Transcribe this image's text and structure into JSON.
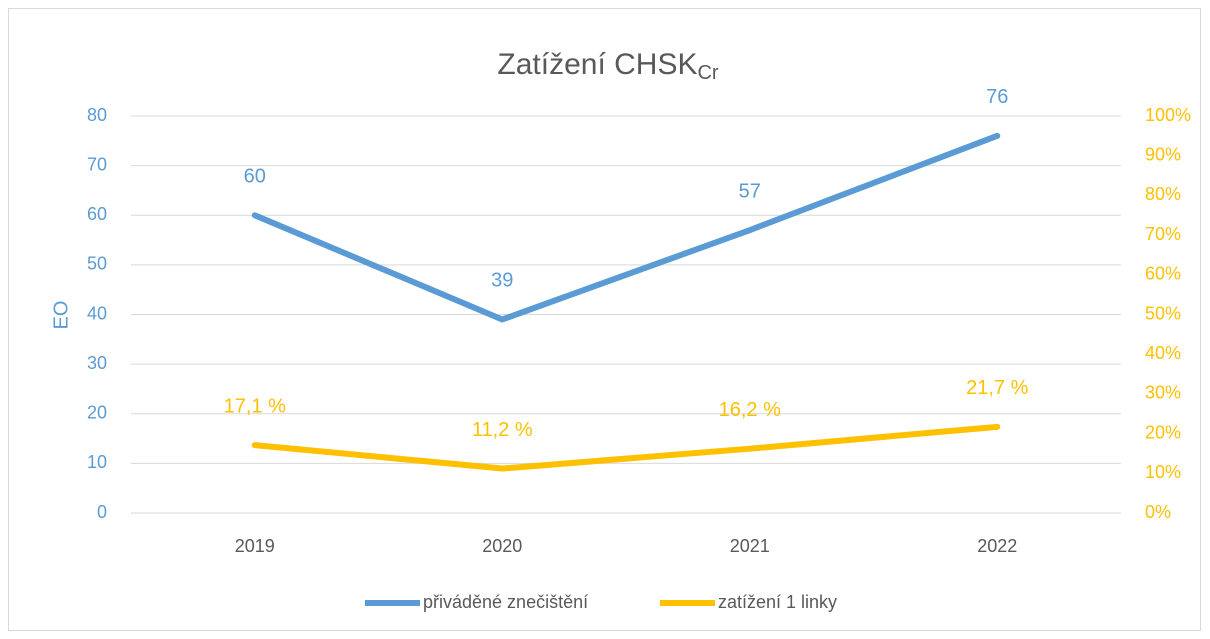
{
  "chart_data": {
    "type": "line",
    "title": "Zatížení CHSK",
    "title_subscript": "Cr",
    "y_label": "EO",
    "categories": [
      "2019",
      "2020",
      "2021",
      "2022"
    ],
    "series": [
      {
        "name": "přiváděné znečištění",
        "color": "#5b9bd5",
        "values": [
          60,
          39,
          57,
          76
        ]
      },
      {
        "name": "zatížení 1 linky",
        "color": "#ffc000",
        "axis": "y2",
        "values": [
          17.1,
          11.2,
          16.2,
          21.7
        ],
        "value_labels": [
          "17,1 %",
          "11,2 %",
          "16,2 %",
          "21,7 %"
        ]
      }
    ],
    "ylim": [
      0,
      80
    ],
    "yticks": [
      0,
      10,
      20,
      30,
      40,
      50,
      60,
      70,
      80
    ],
    "y2lim": [
      0,
      100
    ],
    "y2ticks": [
      {
        "value": 0,
        "label": "0%"
      },
      {
        "value": 10,
        "label": "10%"
      },
      {
        "value": 20,
        "label": "20%"
      },
      {
        "value": 30,
        "label": "30%"
      },
      {
        "value": 40,
        "label": "40%"
      },
      {
        "value": 50,
        "label": "50%"
      },
      {
        "value": 60,
        "label": "60%"
      },
      {
        "value": 70,
        "label": "70%"
      },
      {
        "value": 80,
        "label": "80%"
      },
      {
        "value": 90,
        "label": "90%"
      },
      {
        "value": 100,
        "label": "100%"
      }
    ],
    "grid": true,
    "legend": "bottom"
  }
}
